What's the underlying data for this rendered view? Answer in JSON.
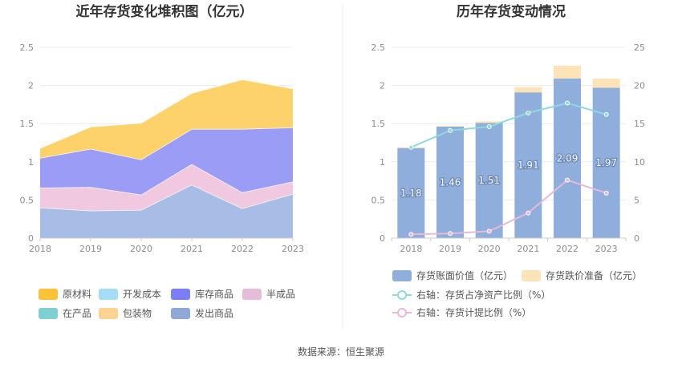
{
  "source": "数据来源：恒生聚源",
  "chart_data": [
    {
      "type": "area",
      "title": "近年存货变化堆积图（亿元）",
      "x": [
        "2018",
        "2019",
        "2020",
        "2021",
        "2022",
        "2023"
      ],
      "ylim": [
        0,
        2.5
      ],
      "yticks": [
        "0",
        "0.5",
        "1",
        "1.5",
        "2",
        "2.5"
      ],
      "grid": true,
      "legend_position": "bottom",
      "legend": [
        "原材料",
        "开发成本",
        "库存商品",
        "半成品",
        "在产品",
        "包装物",
        "发出商品"
      ],
      "series": [
        {
          "name": "发出商品",
          "color": "#a7bde6",
          "values": [
            0.4,
            0.36,
            0.37,
            0.7,
            0.39,
            0.58
          ]
        },
        {
          "name": "半成品",
          "color": "#f0c9e0",
          "values": [
            0.26,
            0.31,
            0.2,
            0.27,
            0.21,
            0.16
          ]
        },
        {
          "name": "库存商品",
          "color": "#9a9cf6",
          "values": [
            0.39,
            0.5,
            0.46,
            0.46,
            0.83,
            0.71
          ]
        },
        {
          "name": "原材料",
          "color": "#fdd26b",
          "values": [
            0.13,
            0.29,
            0.48,
            0.47,
            0.65,
            0.51
          ]
        }
      ],
      "legend_colors": {
        "原材料": "#fbc239",
        "开发成本": "#a6dcf8",
        "库存商品": "#7b7ef5",
        "半成品": "#e6bcdb",
        "在产品": "#7fd1d1",
        "包装物": "#fcd390",
        "发出商品": "#8fa8d8"
      }
    },
    {
      "type": "bar",
      "title": "历年存货变动情况",
      "categories": [
        "2018",
        "2019",
        "2020",
        "2021",
        "2022",
        "2023"
      ],
      "ylim": [
        0,
        2.5
      ],
      "yticks": [
        "0",
        "0.5",
        "1",
        "1.5",
        "2",
        "2.5"
      ],
      "y2lim": [
        0,
        25
      ],
      "y2ticks": [
        "0",
        "5",
        "10",
        "15",
        "20",
        "25"
      ],
      "legend_position": "bottom",
      "series": [
        {
          "name": "存货账面价值（亿元）",
          "color": "#8faedc",
          "values": [
            1.18,
            1.46,
            1.51,
            1.91,
            2.09,
            1.97
          ],
          "labels": [
            "1.18",
            "1.46",
            "1.51",
            "1.91",
            "2.09",
            "1.97"
          ]
        },
        {
          "name": "存货跌价准备（亿元）",
          "color": "#fde4b8",
          "values": [
            0.01,
            0.01,
            0.02,
            0.07,
            0.17,
            0.12
          ]
        }
      ],
      "lines": [
        {
          "name": "右轴：存货占净资产比例（%）",
          "color": "#8fd9dd",
          "axis": "right",
          "values": [
            11.9,
            14.1,
            14.6,
            16.4,
            17.7,
            16.2
          ]
        },
        {
          "name": "右轴：存货计提比例（%）",
          "color": "#e8b8d8",
          "axis": "right",
          "values": [
            0.5,
            0.6,
            0.9,
            3.3,
            7.6,
            5.9
          ]
        }
      ]
    }
  ]
}
